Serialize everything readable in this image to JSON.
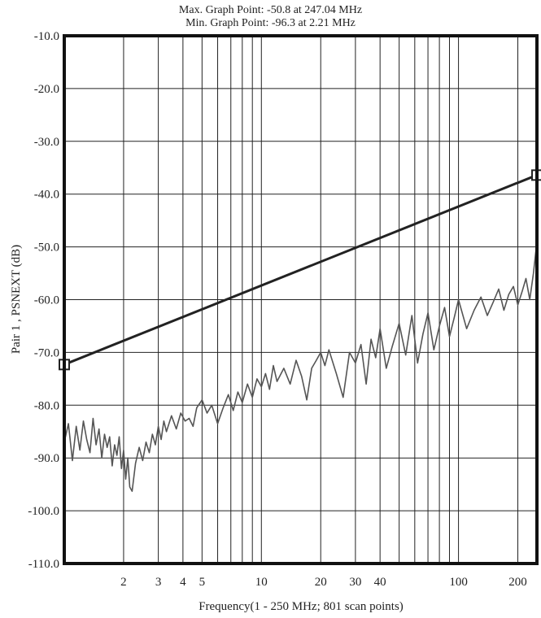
{
  "header": {
    "max_line": "Max. Graph Point: -50.8 at 247.04 MHz",
    "min_line": "Min. Graph Point: -96.3 at 2.21 MHz"
  },
  "chart_data": {
    "type": "line",
    "x_scale": "log",
    "xlim": [
      1,
      250
    ],
    "ylim": [
      -110,
      -10
    ],
    "xlabel": "Frequency(1 - 250 MHz; 801 scan points)",
    "ylabel": "Pair 1 , PSNEXT (dB)",
    "y_ticks": [
      -10,
      -20,
      -30,
      -40,
      -50,
      -60,
      -70,
      -80,
      -90,
      -100,
      -110
    ],
    "y_tick_labels": [
      "-10.0",
      "-20.0",
      "-30.0",
      "-40.0",
      "-50.0",
      "-60.0",
      "-70.0",
      "-80.0",
      "-90.0",
      "-100.0",
      "-110.0"
    ],
    "x_ticks": [
      2,
      3,
      4,
      5,
      10,
      20,
      30,
      40,
      100,
      200
    ],
    "x_tick_labels": [
      "2",
      "3",
      "4",
      "5",
      "10",
      "20",
      "30",
      "40",
      "100",
      "200"
    ],
    "x_gridlines": [
      2,
      3,
      4,
      5,
      6,
      7,
      8,
      9,
      10,
      20,
      30,
      40,
      50,
      60,
      70,
      80,
      90,
      100,
      200
    ],
    "grid": true,
    "series": [
      {
        "role": "limit",
        "color": "#222222",
        "x": [
          1,
          250
        ],
        "y": [
          -72.3,
          -36.4
        ],
        "endpoint_markers": "square"
      },
      {
        "role": "measurement",
        "color": "#555555",
        "x": [
          1.0,
          1.05,
          1.1,
          1.15,
          1.2,
          1.25,
          1.3,
          1.35,
          1.4,
          1.45,
          1.5,
          1.55,
          1.6,
          1.65,
          1.7,
          1.75,
          1.8,
          1.85,
          1.9,
          1.95,
          2.0,
          2.05,
          2.1,
          2.15,
          2.21,
          2.3,
          2.4,
          2.5,
          2.6,
          2.7,
          2.8,
          2.9,
          3.0,
          3.1,
          3.2,
          3.3,
          3.5,
          3.7,
          3.9,
          4.1,
          4.3,
          4.5,
          4.7,
          5.0,
          5.3,
          5.6,
          6.0,
          6.4,
          6.8,
          7.2,
          7.6,
          8.0,
          8.5,
          9.0,
          9.5,
          10.0,
          10.5,
          11.0,
          11.5,
          12.0,
          13.0,
          14.0,
          15.0,
          16.0,
          17.0,
          18.0,
          19.0,
          20.0,
          21.0,
          22.0,
          24.0,
          26.0,
          28.0,
          30.0,
          32.0,
          34.0,
          36.0,
          38.0,
          40.0,
          43.0,
          46.0,
          50.0,
          54.0,
          58.0,
          62.0,
          66.0,
          70.0,
          75.0,
          80.0,
          85.0,
          90.0,
          95.0,
          100.0,
          110.0,
          120.0,
          130.0,
          140.0,
          150.0,
          160.0,
          170.0,
          180.0,
          190.0,
          200.0,
          210.0,
          220.0,
          230.0,
          240.0,
          247.04,
          250.0
        ],
        "y": [
          -87.0,
          -83.5,
          -90.5,
          -84.0,
          -88.5,
          -83.0,
          -86.5,
          -89.0,
          -82.5,
          -87.5,
          -84.5,
          -90.0,
          -85.5,
          -88.0,
          -86.0,
          -91.5,
          -87.5,
          -89.5,
          -86.0,
          -92.0,
          -88.5,
          -94.0,
          -90.0,
          -95.5,
          -96.3,
          -91.0,
          -88.0,
          -90.5,
          -87.0,
          -89.0,
          -85.5,
          -87.5,
          -84.0,
          -86.5,
          -83.0,
          -85.0,
          -82.0,
          -84.5,
          -81.5,
          -83.0,
          -82.5,
          -84.0,
          -80.5,
          -79.0,
          -81.5,
          -80.0,
          -83.5,
          -80.5,
          -78.0,
          -81.0,
          -77.5,
          -79.5,
          -76.0,
          -78.5,
          -75.0,
          -76.5,
          -74.0,
          -77.0,
          -72.5,
          -75.5,
          -73.0,
          -76.0,
          -71.5,
          -74.5,
          -79.0,
          -73.0,
          -71.5,
          -70.0,
          -72.5,
          -69.5,
          -74.0,
          -78.5,
          -70.0,
          -72.0,
          -68.5,
          -76.0,
          -67.5,
          -71.0,
          -65.5,
          -73.0,
          -69.0,
          -64.5,
          -70.5,
          -63.0,
          -72.0,
          -66.5,
          -62.5,
          -69.5,
          -65.0,
          -61.5,
          -67.0,
          -63.5,
          -60.0,
          -65.5,
          -62.0,
          -59.5,
          -63.0,
          -60.5,
          -58.0,
          -62.0,
          -59.0,
          -57.5,
          -61.0,
          -58.5,
          -56.0,
          -60.0,
          -55.0,
          -50.8,
          -53.5
        ]
      }
    ]
  }
}
